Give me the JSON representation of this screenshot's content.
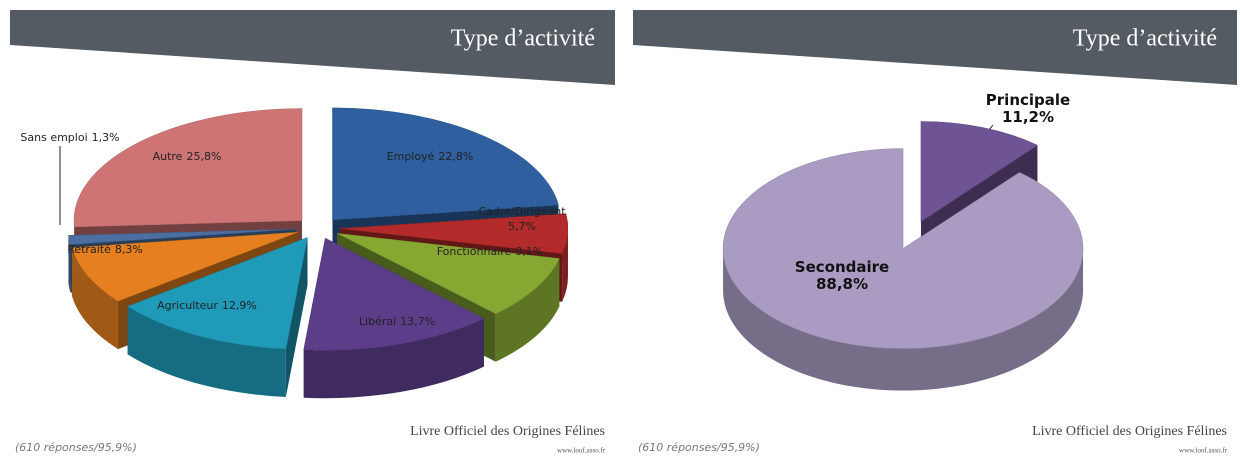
{
  "chart_data": [
    {
      "type": "pie",
      "title": "Type d’activité",
      "categories": [
        "Employé",
        "Cadre/Dirigeant",
        "Fonctionnaire",
        "Libéral",
        "Agriculteur",
        "Retraité",
        "Sans emploi",
        "Autre"
      ],
      "values": [
        22.8,
        5.7,
        9.1,
        13.7,
        12.9,
        8.3,
        1.3,
        25.8
      ],
      "value_labels": [
        "22,8%",
        "5,7%",
        "9,1%",
        "13,7%",
        "12,9%",
        "8,3%",
        "1,3%",
        "25,8%"
      ],
      "colors": [
        "#2f5f9e",
        "#b22a2a",
        "#86a832",
        "#5c3d8a",
        "#1f9ab8",
        "#e57f1f",
        "#4a6fa0",
        "#cf7474"
      ],
      "note": "(610 réponses/95,9%)",
      "logo": "Livre Officiel des Origines Félines",
      "url": "www.loof.asso.fr"
    },
    {
      "type": "pie",
      "title": "Type d’activité",
      "categories": [
        "Principale",
        "Secondaire"
      ],
      "values": [
        11.2,
        88.8
      ],
      "value_labels": [
        "11,2%",
        "88,8%"
      ],
      "colors": [
        "#6e5494",
        "#a99bc2"
      ],
      "note": "(610 réponses/95,9%)",
      "logo": "Livre Officiel des Origines Félines",
      "url": "www.loof.asso.fr"
    }
  ]
}
